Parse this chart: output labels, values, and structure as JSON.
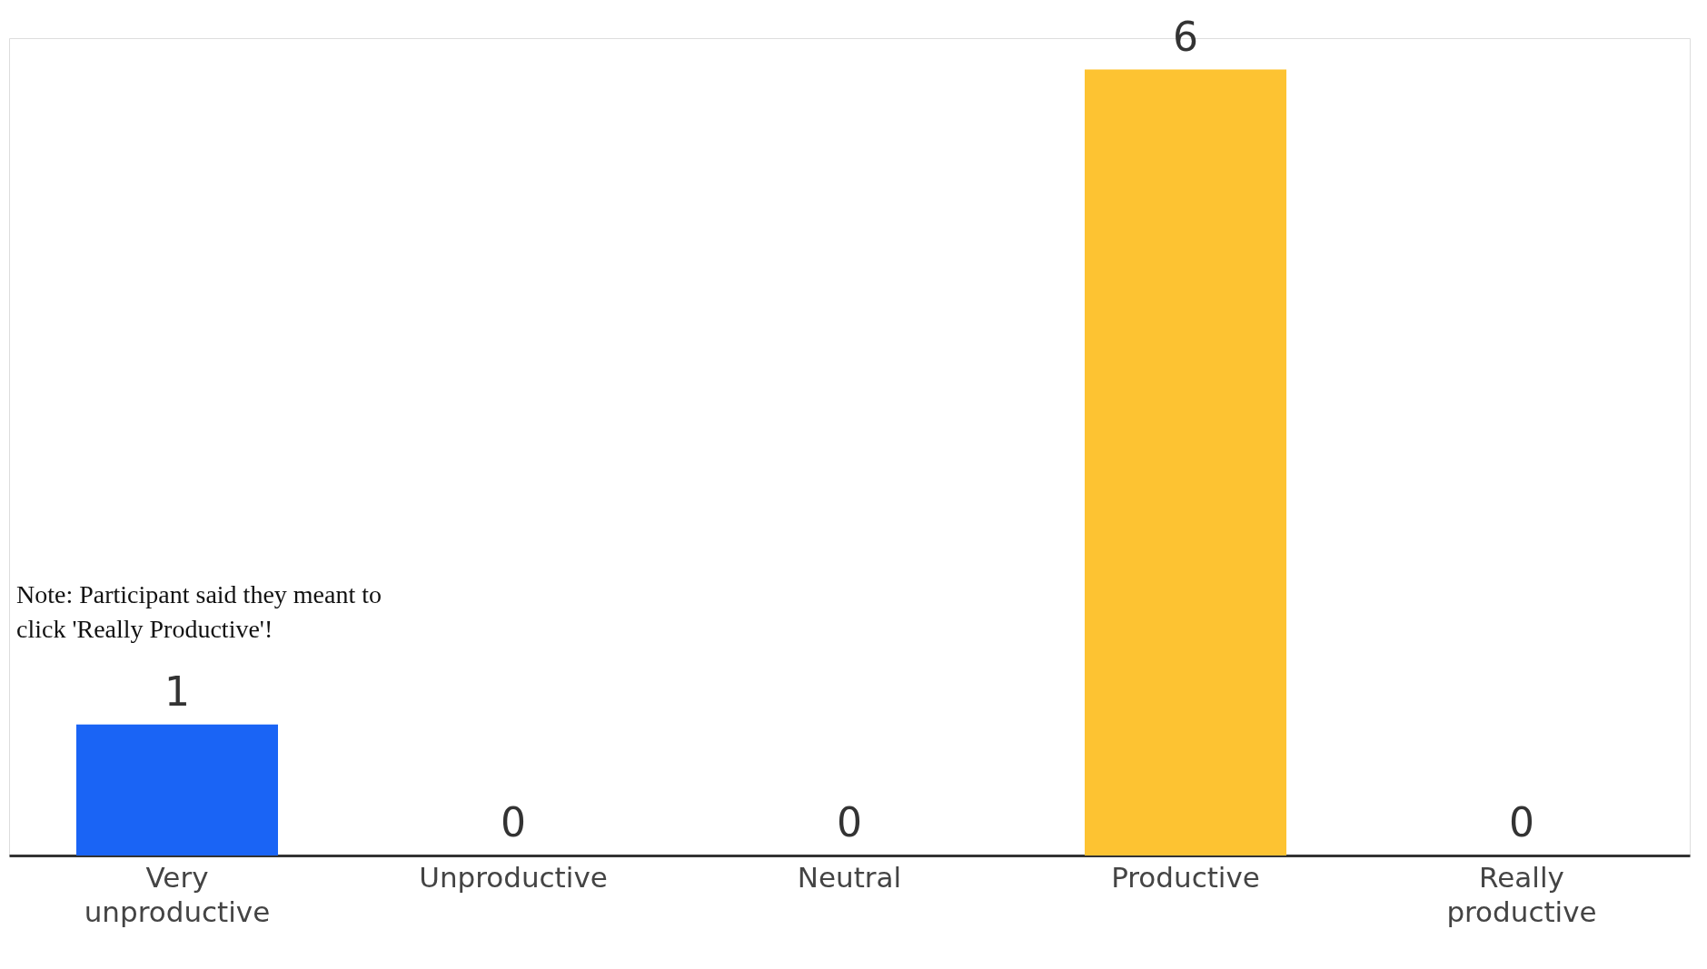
{
  "chart_data": {
    "type": "bar",
    "categories": [
      "Very unproductive",
      "Unproductive",
      "Neutral",
      "Productive",
      "Really productive"
    ],
    "values": [
      1,
      0,
      0,
      6,
      0
    ],
    "colors": [
      "#1a64f5",
      "#cccccc",
      "#cccccc",
      "#fdc332",
      "#cccccc"
    ],
    "data_labels": true,
    "annotations": [
      "Note: Participant said they meant to click 'Really Productive'!"
    ]
  }
}
